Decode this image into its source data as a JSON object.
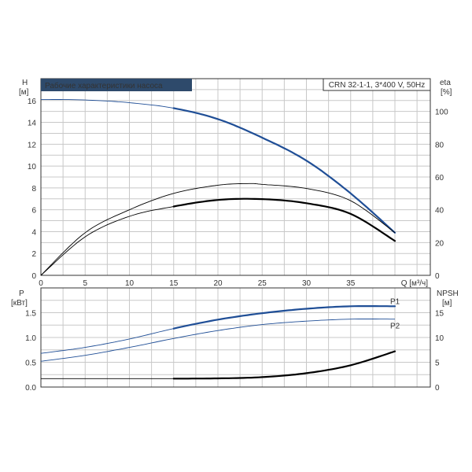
{
  "chart_data": [
    {
      "type": "line",
      "title": "Рабочие характеристики насоса",
      "model_label": "CRN 32-1-1, 3*400 V, 50Hz",
      "xlabel": "Q [м³/ч]",
      "ylabel_left": "H",
      "ylabel_left_unit": "[м]",
      "ylabel_right": "eta",
      "ylabel_right_unit": "[%]",
      "xlim": [
        0,
        44
      ],
      "ylim_left": [
        0,
        18
      ],
      "ylim_right": [
        0,
        120
      ],
      "x_ticks": [
        "0",
        "5",
        "10",
        "15",
        "20",
        "25",
        "30",
        "35"
      ],
      "y_left_ticks": [
        "0",
        "2",
        "4",
        "6",
        "8",
        "10",
        "12",
        "14",
        "16"
      ],
      "y_right_ticks": [
        "0",
        "20",
        "40",
        "60",
        "80",
        "100"
      ],
      "grid": true,
      "series": [
        {
          "axis": "left",
          "color": "#1f4e96",
          "thin_until_x": 15,
          "points": [
            [
              0,
              16.1
            ],
            [
              5,
              16.05
            ],
            [
              10,
              15.8
            ],
            [
              15,
              15.3
            ],
            [
              20,
              14.3
            ],
            [
              25,
              12.6
            ],
            [
              30,
              10.5
            ],
            [
              35,
              7.5
            ],
            [
              40,
              3.9
            ]
          ]
        },
        {
          "axis": "right",
          "color": "#000000",
          "thin_until_x": 40,
          "points": [
            [
              0,
              0
            ],
            [
              5,
              26
            ],
            [
              10,
              40
            ],
            [
              15,
              50
            ],
            [
              20,
              55
            ],
            [
              23.5,
              56
            ],
            [
              25,
              55.5
            ],
            [
              30,
              53
            ],
            [
              35,
              45.5
            ],
            [
              40,
              26
            ]
          ]
        },
        {
          "axis": "right",
          "color": "#000000",
          "thin_until_x": 15,
          "points": [
            [
              0,
              0
            ],
            [
              5,
              23.5
            ],
            [
              10,
              36
            ],
            [
              15,
              42
            ],
            [
              20,
              46
            ],
            [
              25,
              46.5
            ],
            [
              30,
              44
            ],
            [
              35,
              37.5
            ],
            [
              40,
              21
            ]
          ]
        }
      ]
    },
    {
      "type": "line",
      "ylabel_left": "P",
      "ylabel_left_unit": "[кВт]",
      "ylabel_right": "NPSH",
      "ylabel_right_unit": "[м]",
      "xlim": [
        0,
        44
      ],
      "ylim_left": [
        0,
        2.0
      ],
      "ylim_right": [
        0,
        20
      ],
      "y_left_ticks": [
        "0.0",
        "0.5",
        "1.0",
        "1.5"
      ],
      "y_right_ticks": [
        "0",
        "5",
        "10",
        "15"
      ],
      "grid": true,
      "series": [
        {
          "name": "P1",
          "axis": "left",
          "color": "#1f4e96",
          "thin_until_x": 15,
          "points": [
            [
              0,
              0.68
            ],
            [
              5,
              0.8
            ],
            [
              10,
              0.97
            ],
            [
              15,
              1.18
            ],
            [
              20,
              1.36
            ],
            [
              25,
              1.49
            ],
            [
              30,
              1.58
            ],
            [
              35,
              1.63
            ],
            [
              40,
              1.63
            ]
          ]
        },
        {
          "name": "P2",
          "axis": "left",
          "color": "#1f4e96",
          "thin_until_x": 40,
          "points": [
            [
              0,
              0.52
            ],
            [
              5,
              0.64
            ],
            [
              10,
              0.8
            ],
            [
              15,
              0.98
            ],
            [
              20,
              1.14
            ],
            [
              25,
              1.26
            ],
            [
              30,
              1.33
            ],
            [
              35,
              1.37
            ],
            [
              40,
              1.37
            ]
          ]
        },
        {
          "axis": "right",
          "color": "#000000",
          "thin_until_x": 15,
          "points": [
            [
              0,
              1.7
            ],
            [
              5,
              1.7
            ],
            [
              10,
              1.7
            ],
            [
              15,
              1.7
            ],
            [
              20,
              1.75
            ],
            [
              25,
              2.0
            ],
            [
              30,
              2.8
            ],
            [
              35,
              4.4
            ],
            [
              40,
              7.2
            ]
          ]
        }
      ]
    }
  ]
}
